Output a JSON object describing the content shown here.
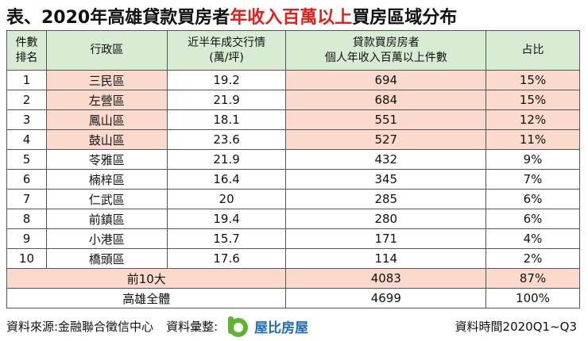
{
  "header": {
    "title": [
      {
        "text": "表、2020年高雄貸款買房者",
        "highlight": false
      },
      {
        "text": "年收入百萬以上",
        "highlight": true
      },
      {
        "text": "買房區域分布",
        "highlight": false
      }
    ]
  },
  "table": {
    "columns": [
      [
        "件數",
        "排名"
      ],
      [
        "行政區"
      ],
      [
        "近半年成交行情",
        "(萬/坪)"
      ],
      [
        "貸款買房房者",
        "個人年收入百萬以上件數"
      ],
      [
        "占比"
      ]
    ],
    "rows": [
      [
        "1",
        "三民區",
        "19.2",
        "694",
        "15%"
      ],
      [
        "2",
        "左營區",
        "21.9",
        "684",
        "15%"
      ],
      [
        "3",
        "鳳山區",
        "18.1",
        "551",
        "12%"
      ],
      [
        "4",
        "鼓山區",
        "23.6",
        "527",
        "11%"
      ],
      [
        "5",
        "苓雅區",
        "21.9",
        "432",
        "9%"
      ],
      [
        "6",
        "楠梓區",
        "16.4",
        "345",
        "7%"
      ],
      [
        "7",
        "仁武區",
        "20",
        "285",
        "6%"
      ],
      [
        "8",
        "前鎮區",
        "19.4",
        "280",
        "6%"
      ],
      [
        "9",
        "小港區",
        "15.7",
        "171",
        "4%"
      ],
      [
        "10",
        "橋頭區",
        "17.6",
        "114",
        "2%"
      ]
    ],
    "totals": [
      [
        "前10大",
        "4083",
        "87%"
      ],
      [
        "高雄全體",
        "4699",
        "100%"
      ]
    ]
  },
  "footer": {
    "source": "資料來源:金融聯合徵信中心",
    "compiler": "資料彙整:",
    "brand": "屋比房屋",
    "period": "資料時間2020Q1~Q3"
  }
}
